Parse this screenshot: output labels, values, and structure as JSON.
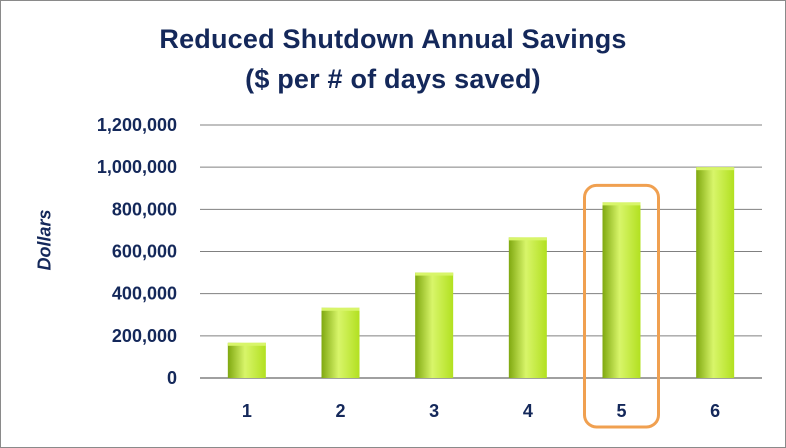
{
  "chart_data": {
    "type": "bar",
    "title": "Reduced Shutdown Annual Savings",
    "subtitle": "($ per # of days saved)",
    "xlabel": "",
    "ylabel": "Dollars",
    "categories": [
      "1",
      "2",
      "3",
      "4",
      "5",
      "6"
    ],
    "values": [
      167000,
      333000,
      500000,
      667000,
      833000,
      1000000
    ],
    "ylim": [
      0,
      1200000
    ],
    "y_ticks": [
      "0",
      "200,000",
      "400,000",
      "600,000",
      "800,000",
      "1,000,000",
      "1,200,000"
    ],
    "grid": true,
    "highlighted_category": "5",
    "colors": {
      "bar": "#b2e020",
      "bar_light": "#d8f56a",
      "bar_dark": "#7fa810",
      "highlight_box": "#f0a050",
      "text": "#14285a",
      "grid": "#808080"
    }
  }
}
